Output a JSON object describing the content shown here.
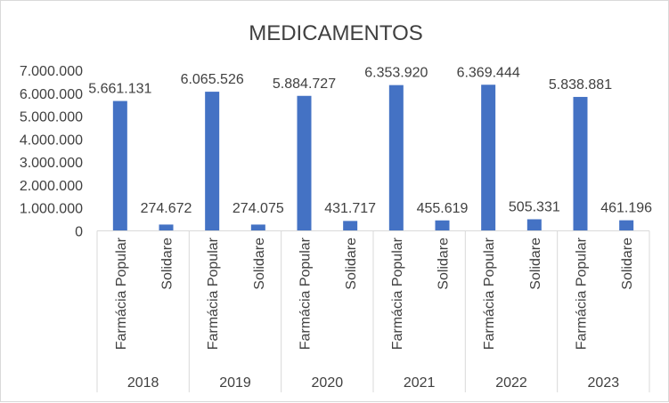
{
  "chart_data": {
    "type": "bar",
    "title": "MEDICAMENTOS",
    "groups": [
      "2018",
      "2019",
      "2020",
      "2021",
      "2022",
      "2023"
    ],
    "categories": [
      "Farmácia Popular",
      "Solidare"
    ],
    "values": [
      [
        5661131,
        274672
      ],
      [
        6065526,
        274075
      ],
      [
        5884727,
        431717
      ],
      [
        6353920,
        455619
      ],
      [
        6369444,
        505331
      ],
      [
        5838881,
        461196
      ]
    ],
    "value_labels": [
      [
        "5.661.131",
        "274.672"
      ],
      [
        "6.065.526",
        "274.075"
      ],
      [
        "5.884.727",
        "431.717"
      ],
      [
        "6.353.920",
        "455.619"
      ],
      [
        "6.369.444",
        "505.331"
      ],
      [
        "5.838.881",
        "461.196"
      ]
    ],
    "ylim": [
      0,
      7000000
    ],
    "yticks": [
      0,
      1000000,
      2000000,
      3000000,
      4000000,
      5000000,
      6000000,
      7000000
    ],
    "ytick_labels": [
      "0",
      "1.000.000",
      "2.000.000",
      "3.000.000",
      "4.000.000",
      "5.000.000",
      "6.000.000",
      "7.000.000"
    ],
    "grid": false,
    "legend": "none",
    "bar_color": "#4472c4"
  }
}
